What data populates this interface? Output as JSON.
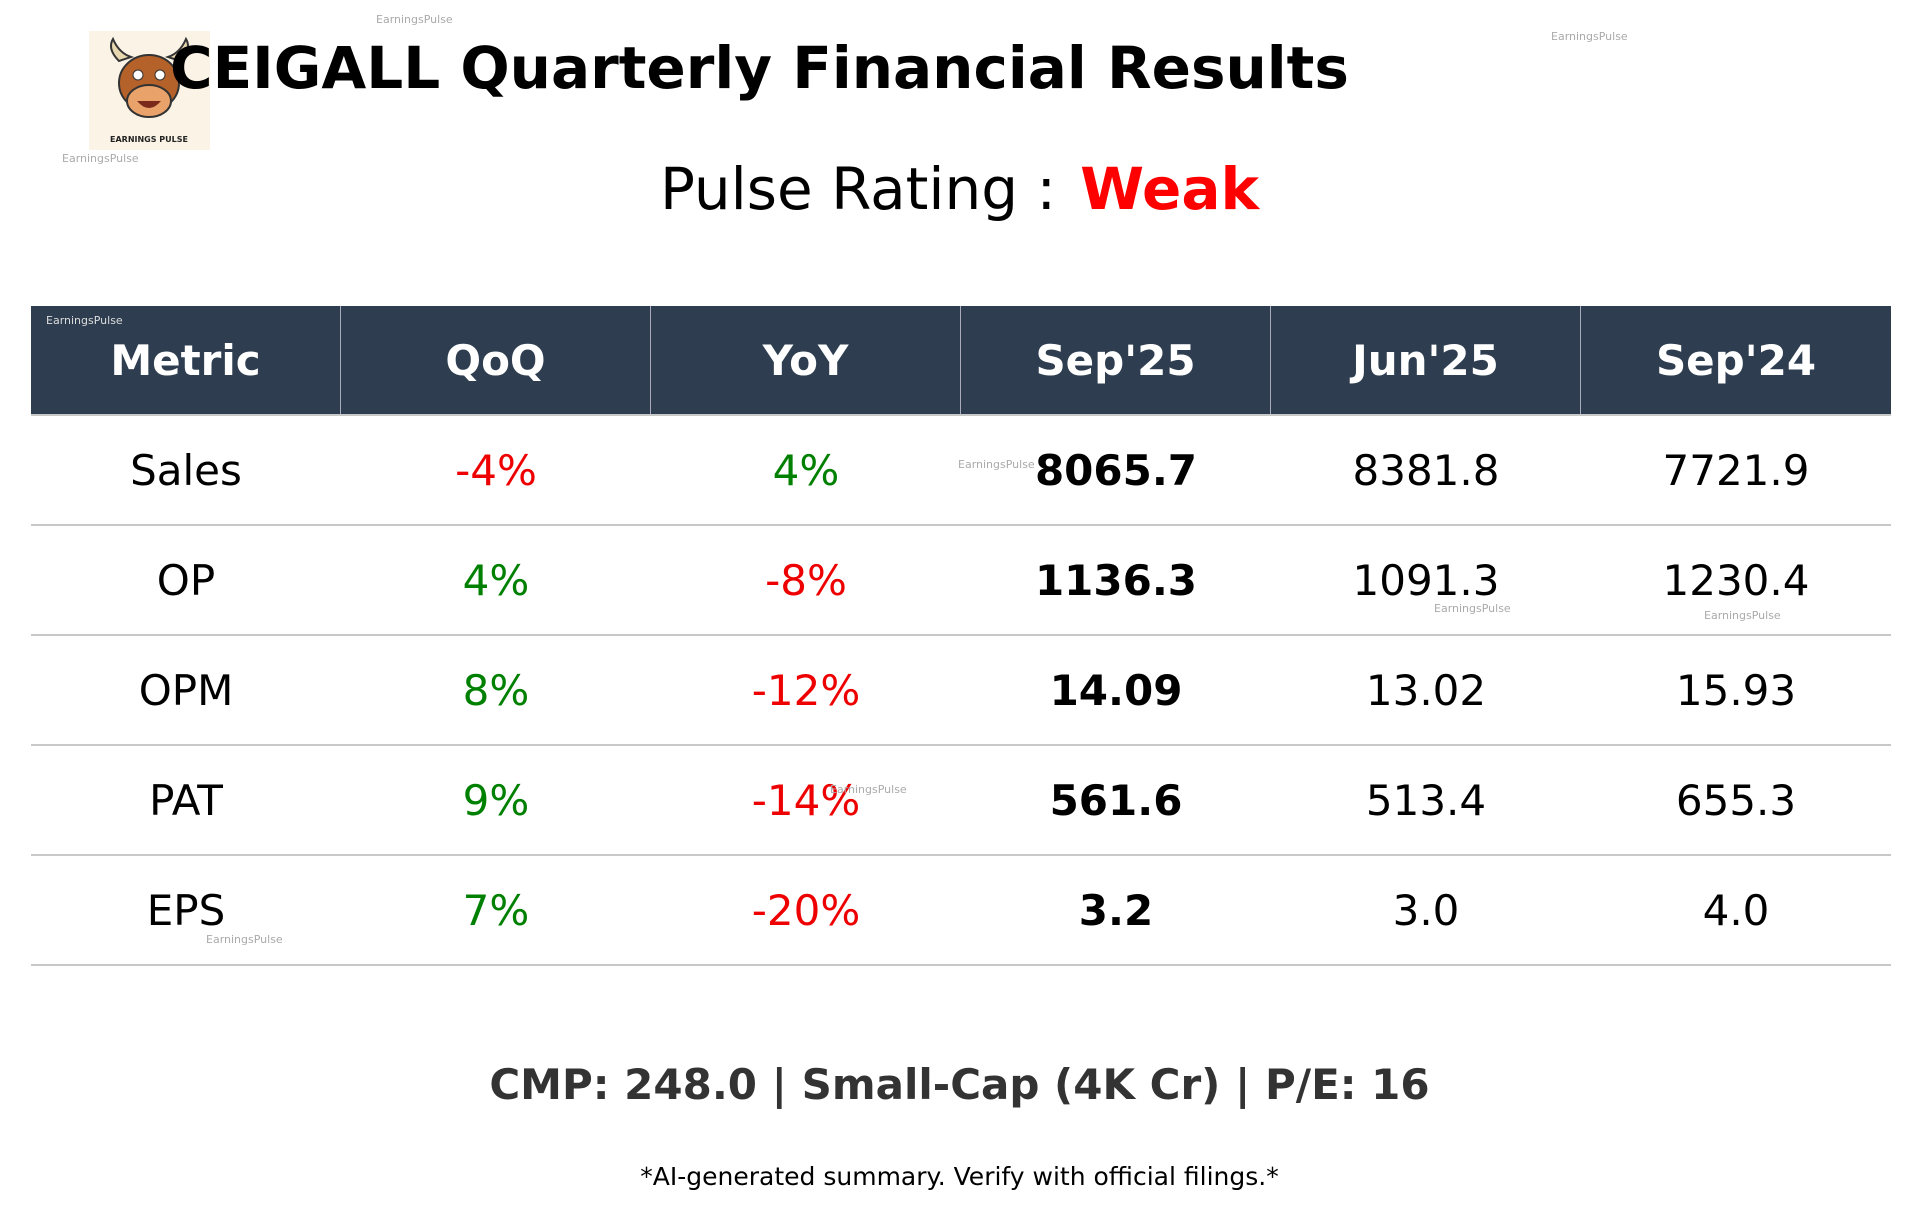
{
  "header": {
    "title": "CEIGALL Quarterly Financial Results",
    "rating_label": "Pulse Rating :",
    "rating": "Weak",
    "logo_text": "EARNINGS PULSE"
  },
  "watermark": "EarningsPulse",
  "table": {
    "columns": [
      "Metric",
      "QoQ",
      "YoY",
      "Sep'25",
      "Jun'25",
      "Sep'24"
    ],
    "rows": [
      [
        "Sales",
        "-4%",
        "4%",
        "8065.7",
        "8381.8",
        "7721.9"
      ],
      [
        "OP",
        "4%",
        "-8%",
        "1136.3",
        "1091.3",
        "1230.4"
      ],
      [
        "OPM",
        "8%",
        "-12%",
        "14.09",
        "13.02",
        "15.93"
      ],
      [
        "PAT",
        "9%",
        "-14%",
        "561.6",
        "513.4",
        "655.3"
      ],
      [
        "EPS",
        "7%",
        "-20%",
        "3.2",
        "3.0",
        "4.0"
      ]
    ]
  },
  "footer": {
    "summary": "CMP: 248.0 | Small-Cap (4K Cr) | P/E: 16",
    "disclaimer": "*AI-generated summary. Verify with official filings.*"
  }
}
